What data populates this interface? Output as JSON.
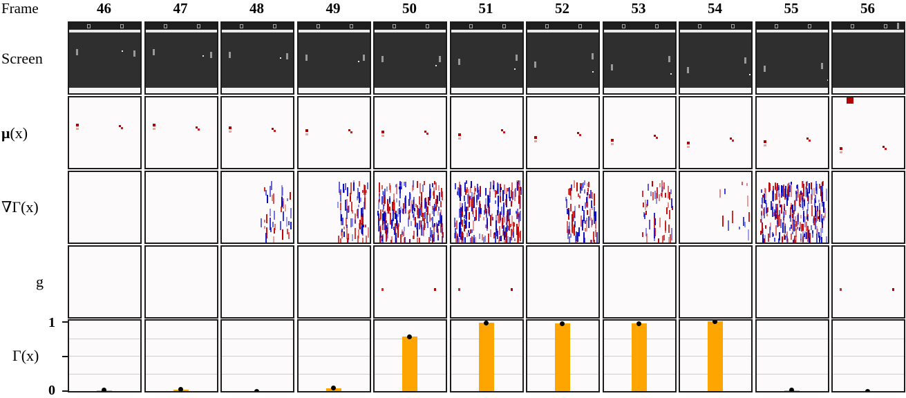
{
  "header": {
    "frame_label": "Frame"
  },
  "frames": [
    "46",
    "47",
    "48",
    "49",
    "50",
    "51",
    "52",
    "53",
    "54",
    "55",
    "56"
  ],
  "rows": {
    "screen": "Screen",
    "mu": {
      "symbol": "μ",
      "arg": "(x)"
    },
    "grad": {
      "symbol": "∇Γ",
      "arg": "(x)"
    },
    "g": "g",
    "gamma": {
      "symbol": "Γ",
      "arg": "(x)"
    }
  },
  "gamma_axis": {
    "top": "1",
    "bottom": "0"
  },
  "colors": {
    "bar": "#ffa500",
    "positive": "#c00000",
    "negative": "#0000c0",
    "screen_bg": "#2f2f2f"
  },
  "chart_data": {
    "type": "bar",
    "categories": [
      "46",
      "47",
      "48",
      "49",
      "50",
      "51",
      "52",
      "53",
      "54",
      "55",
      "56"
    ],
    "values": [
      0.01,
      0.02,
      0.0,
      0.04,
      0.77,
      0.97,
      0.96,
      0.96,
      0.99,
      0.01,
      0.0
    ],
    "ylim": [
      0,
      1
    ],
    "grid": true
  }
}
